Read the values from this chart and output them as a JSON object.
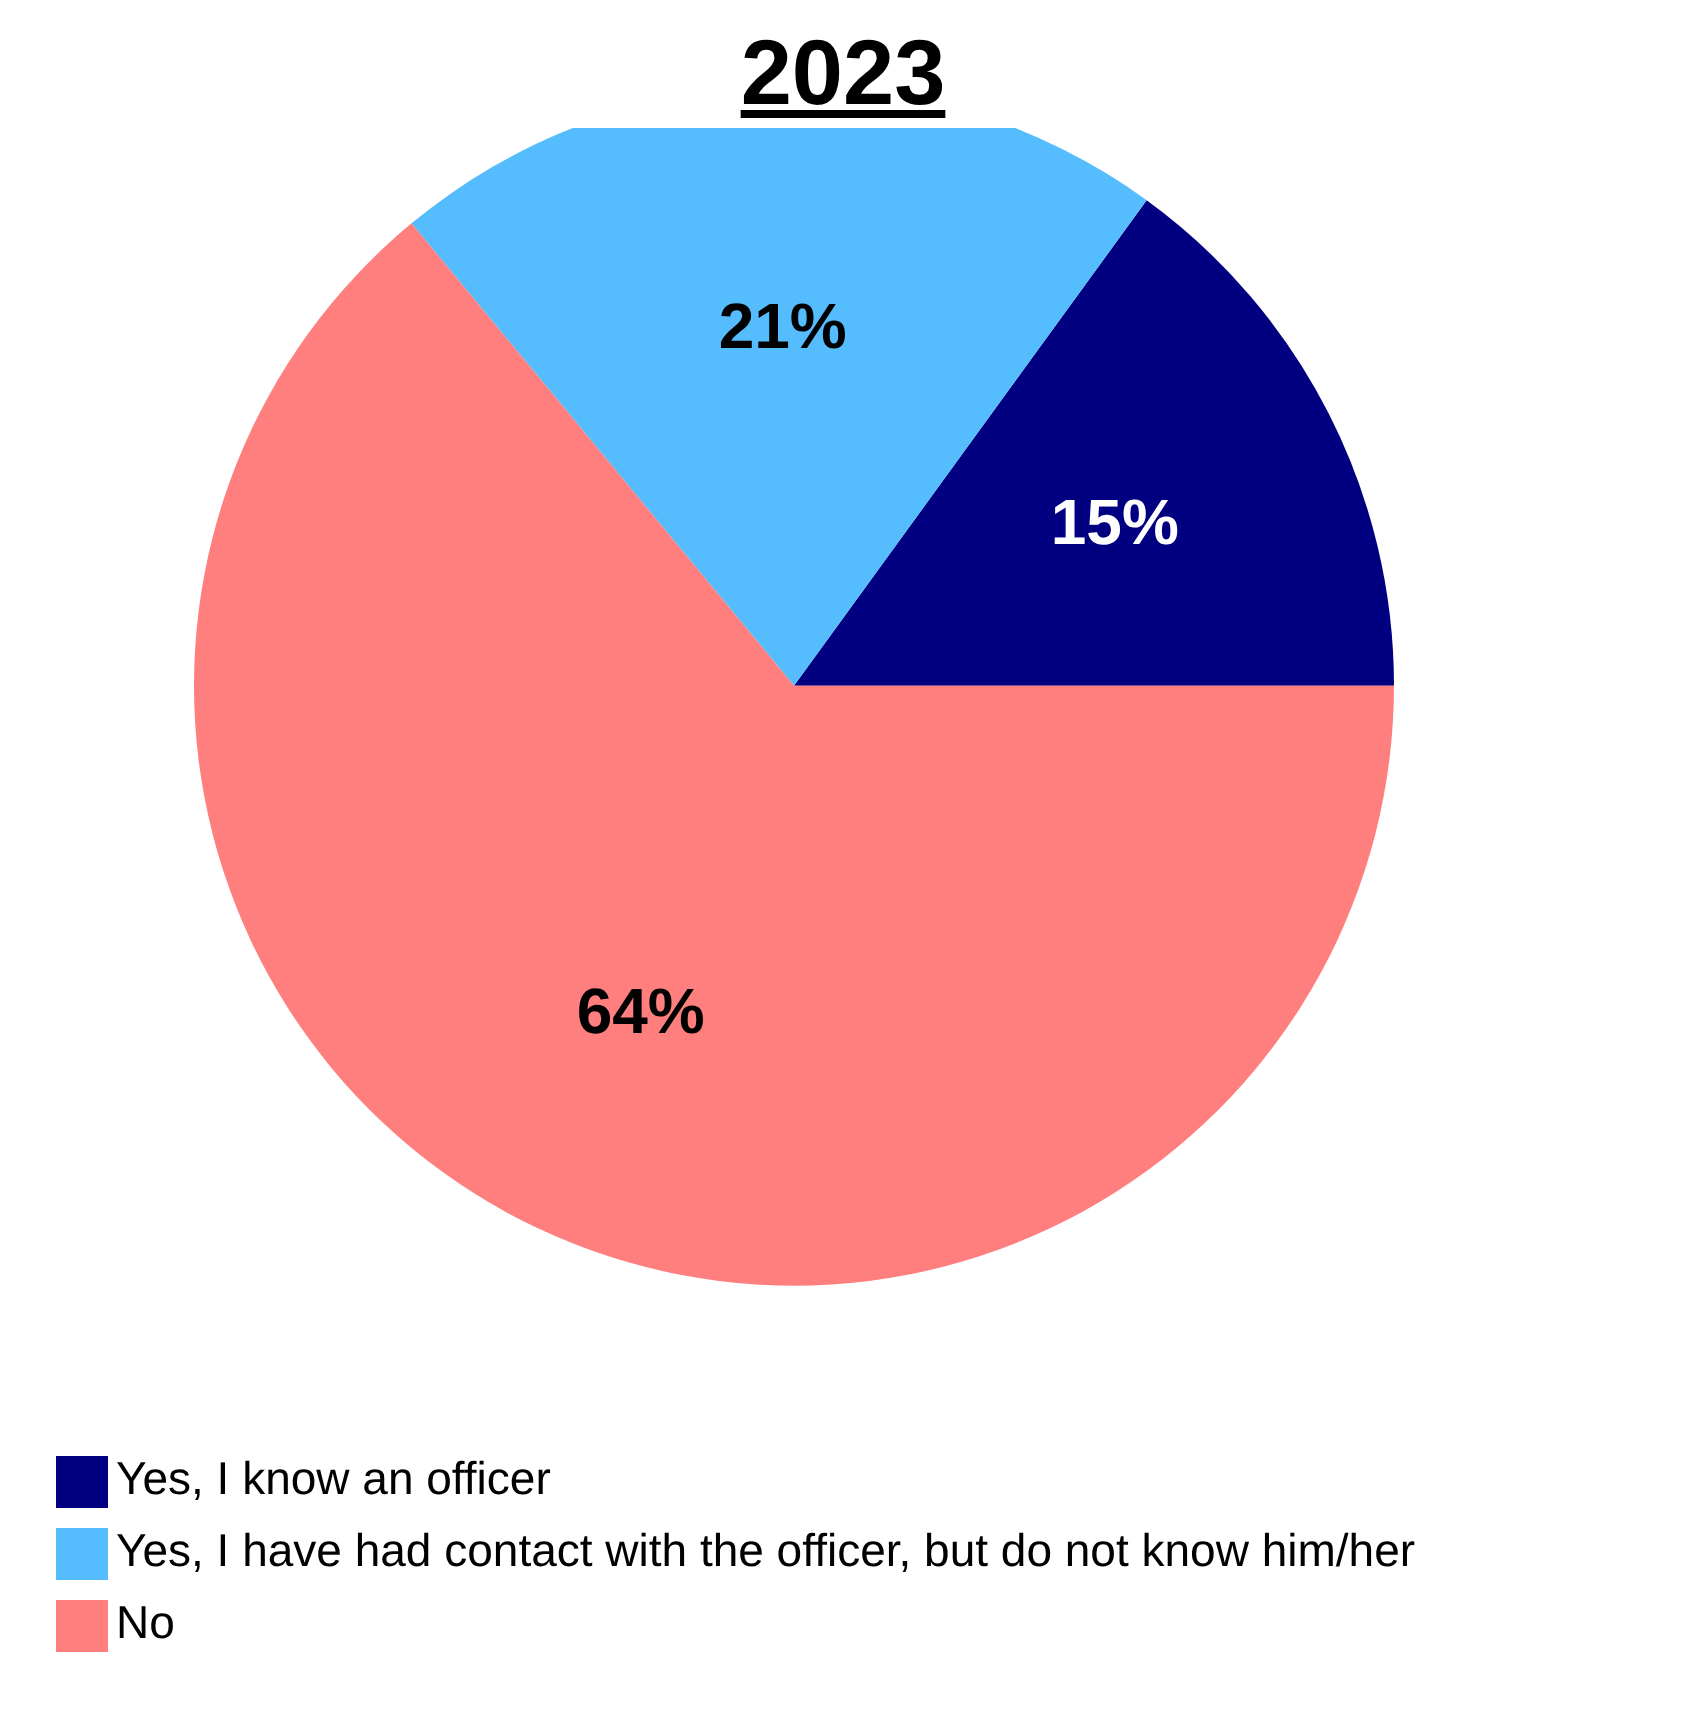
{
  "chart_data": {
    "type": "pie",
    "title": "2023",
    "categories": [
      "Yes, I know an officer",
      "Yes, I have had contact with the officer, but do not know him/her",
      "No"
    ],
    "values": [
      15,
      21,
      64
    ],
    "colors": [
      "#000080",
      "#55bcfe",
      "#ff7f7f"
    ],
    "value_labels": [
      "15%",
      "21%",
      "64%"
    ],
    "legend": "bottom"
  }
}
